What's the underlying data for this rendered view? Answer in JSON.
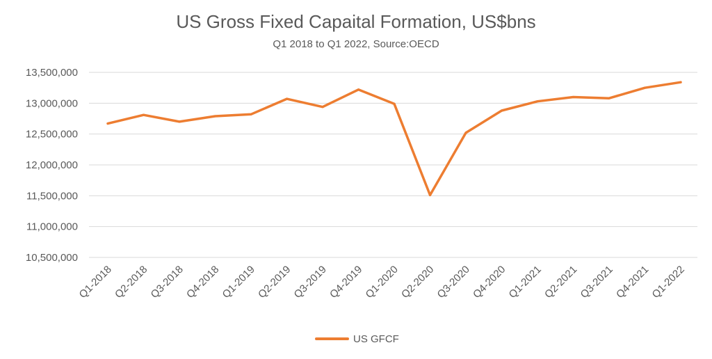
{
  "chart_data": {
    "type": "line",
    "title": "US Gross Fixed Capaital Formation, US$bns",
    "subtitle": "Q1 2018 to Q1 2022, Source:OECD",
    "categories": [
      "Q1-2018",
      "Q2-2018",
      "Q3-2018",
      "Q4-2018",
      "Q1-2019",
      "Q2-2019",
      "Q3-2019",
      "Q4-2019",
      "Q1-2020",
      "Q2-2020",
      "Q3-2020",
      "Q4-2020",
      "Q1-2021",
      "Q2-2021",
      "Q3-2021",
      "Q4-2021",
      "Q1-2022"
    ],
    "series": [
      {
        "name": "US GFCF",
        "color": "#ED7D31",
        "values": [
          12670000,
          12810000,
          12700000,
          12790000,
          12820000,
          13070000,
          12940000,
          13220000,
          12990000,
          11510000,
          12520000,
          12880000,
          13030000,
          13100000,
          13080000,
          13250000,
          13340000
        ]
      }
    ],
    "ylim": [
      10500000,
      13500000
    ],
    "yticks": [
      10500000,
      11000000,
      11500000,
      12000000,
      12500000,
      13000000,
      13500000
    ],
    "ytick_labels": [
      "10,500,000",
      "11,000,000",
      "11,500,000",
      "12,000,000",
      "12,500,000",
      "13,000,000",
      "13,500,000"
    ],
    "grid": true,
    "grid_color": "#D9D9D9",
    "legend_position": "bottom",
    "xlabel": "",
    "ylabel": ""
  }
}
